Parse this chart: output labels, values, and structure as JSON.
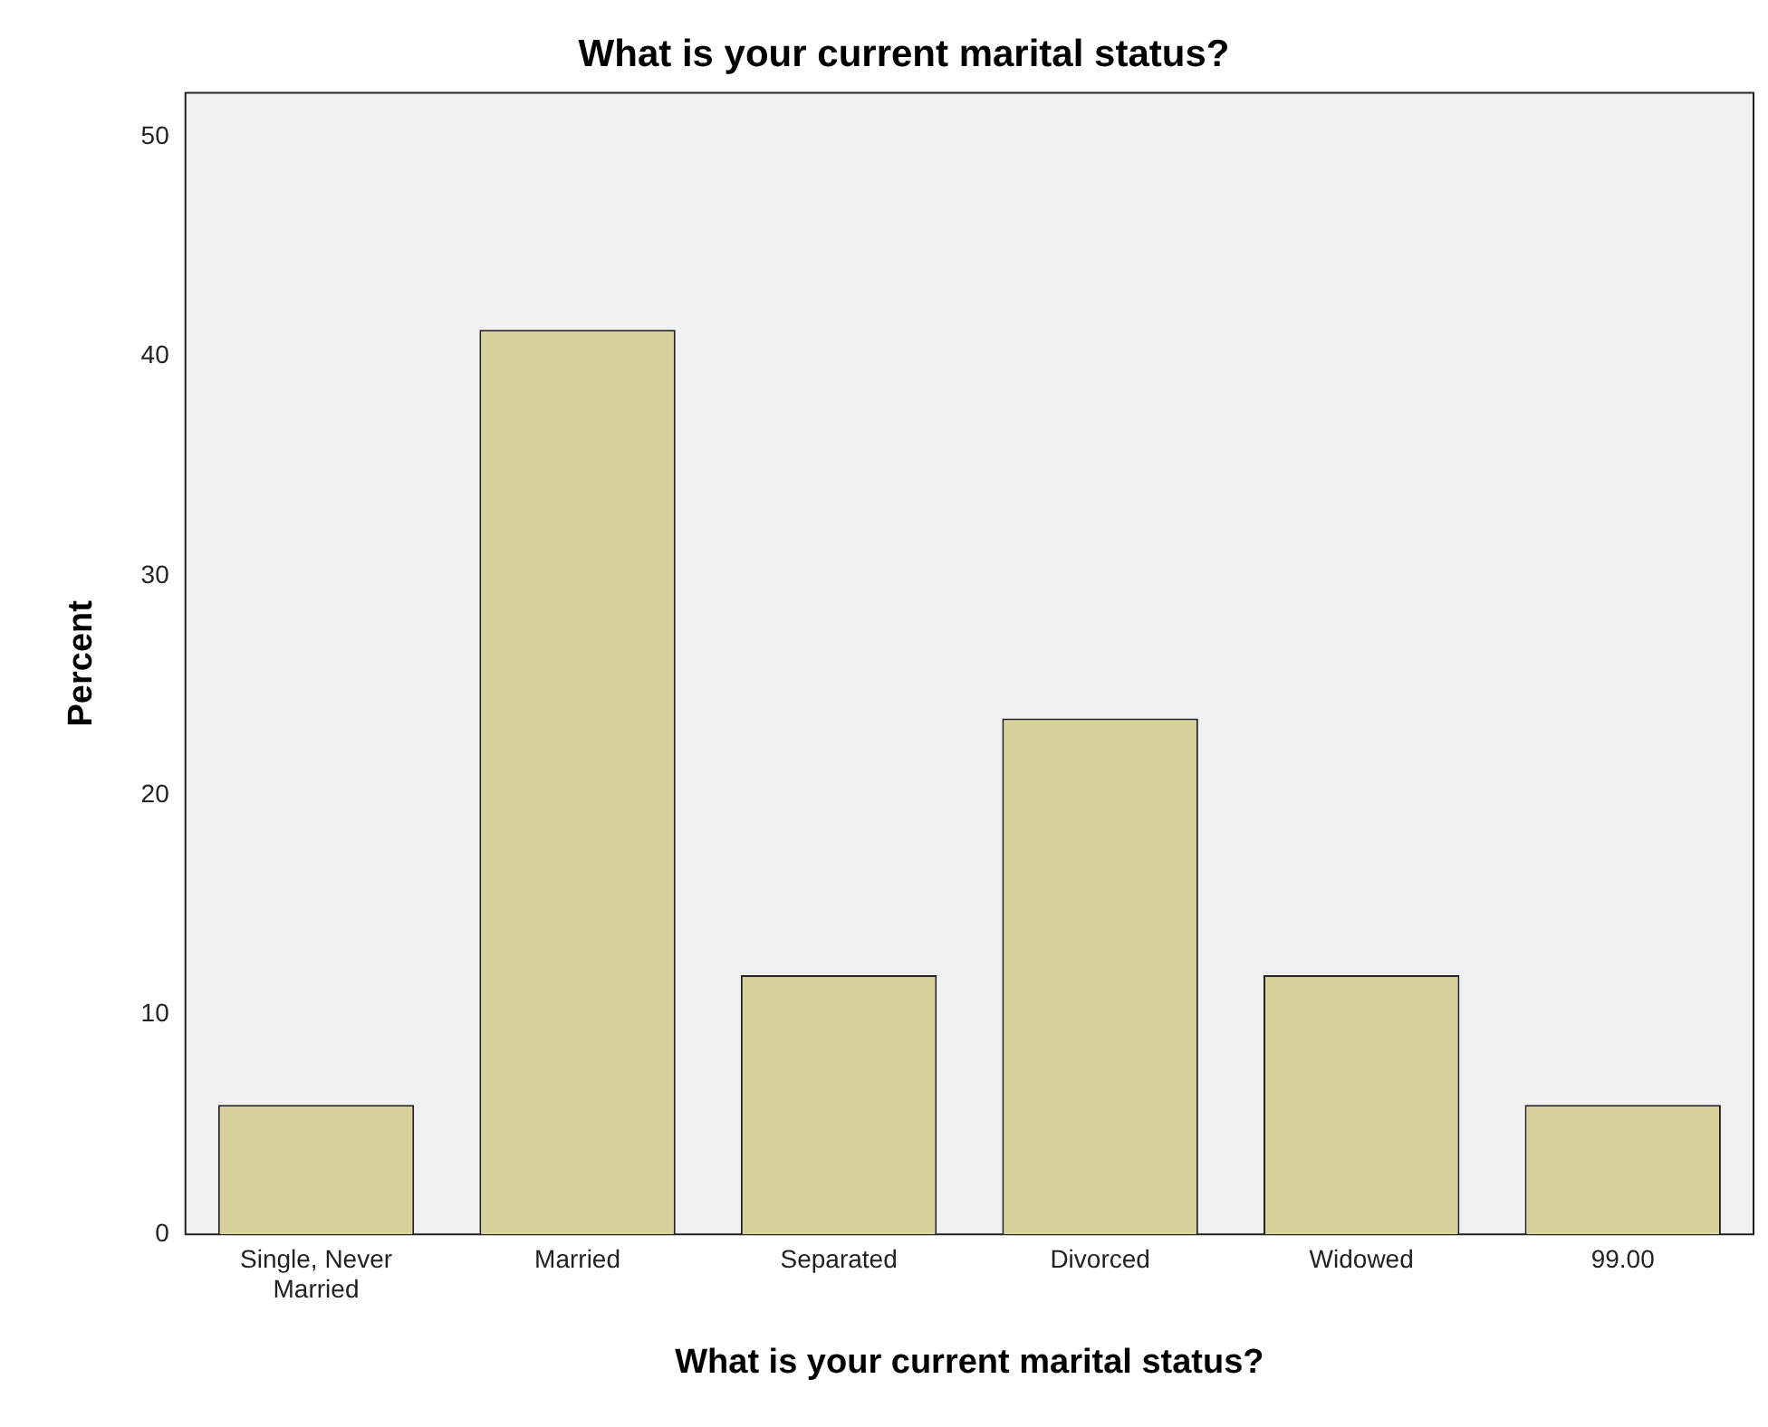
{
  "chart_data": {
    "type": "bar",
    "title": "What is your current marital status?",
    "xlabel": "What is your current marital status?",
    "ylabel": "Percent",
    "categories": [
      "Single, Never Married",
      "Married",
      "Separated",
      "Divorced",
      "Widowed",
      "99.00"
    ],
    "values": [
      5.9,
      41.2,
      11.8,
      23.5,
      11.8,
      5.9
    ],
    "color": "#d7d29c",
    "ylim": [
      0,
      52
    ],
    "yticks": [
      0,
      10,
      20,
      30,
      40,
      50
    ],
    "grid": false,
    "legend": false
  }
}
